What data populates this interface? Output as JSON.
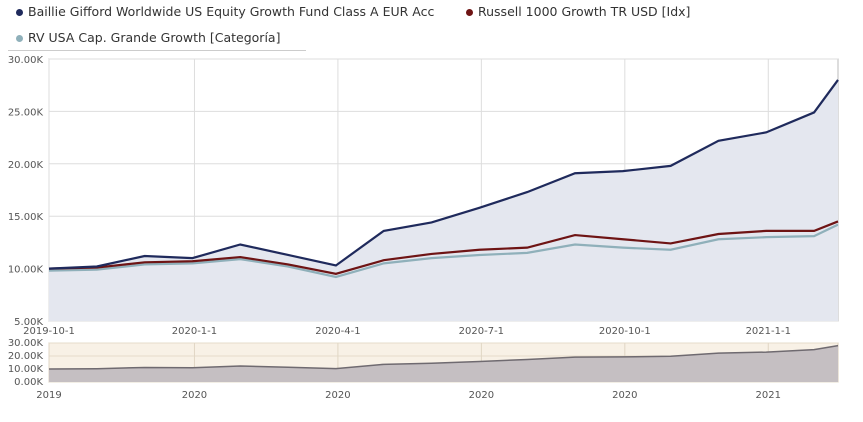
{
  "chart_data": {
    "type": "line",
    "title": "",
    "xlabel": "",
    "ylabel": "",
    "ylim": [
      5000,
      30000
    ],
    "grid": true,
    "legend_position": "top-left",
    "y_ticks": [
      "5.00K",
      "10.00K",
      "15.00K",
      "20.00K",
      "25.00K",
      "30.00K"
    ],
    "x_ticks": [
      "2019-10-1",
      "2020-1-1",
      "2020-4-1",
      "2020-7-1",
      "2020-10-1",
      "2021-1-1"
    ],
    "x_months": [
      0,
      1,
      2,
      3,
      4,
      5,
      6,
      7,
      8,
      9,
      10,
      11,
      12,
      13,
      14,
      15,
      16,
      16.5
    ],
    "series": [
      {
        "name": "Baillie Gifford Worldwide US Equity Growth Fund Class A EUR Acc",
        "color": "#1f2a5c",
        "values": [
          10000,
          10200,
          11200,
          11000,
          12300,
          11300,
          10300,
          13600,
          14400,
          15800,
          17300,
          19100,
          19300,
          19800,
          22200,
          23000,
          24900,
          28000
        ]
      },
      {
        "name": "Russell 1000 Growth TR USD [Idx]",
        "color": "#6e1414",
        "values": [
          10000,
          10100,
          10600,
          10700,
          11100,
          10400,
          9500,
          10800,
          11400,
          11800,
          12000,
          13200,
          12800,
          12400,
          13300,
          13600,
          13600,
          14500
        ]
      },
      {
        "name": "RV USA Cap. Grande Growth [Categoría]",
        "color": "#8fb0ba",
        "values": [
          9800,
          9900,
          10400,
          10500,
          10900,
          10200,
          9200,
          10500,
          11000,
          11300,
          11500,
          12300,
          12000,
          11800,
          12800,
          13000,
          13100,
          14200
        ]
      }
    ],
    "navigator": {
      "y_ticks": [
        "0.00K",
        "10.00K",
        "20.00K",
        "30.00K"
      ],
      "x_ticks": [
        "2019",
        "2020",
        "2020",
        "2020",
        "2020",
        "2021"
      ]
    }
  }
}
